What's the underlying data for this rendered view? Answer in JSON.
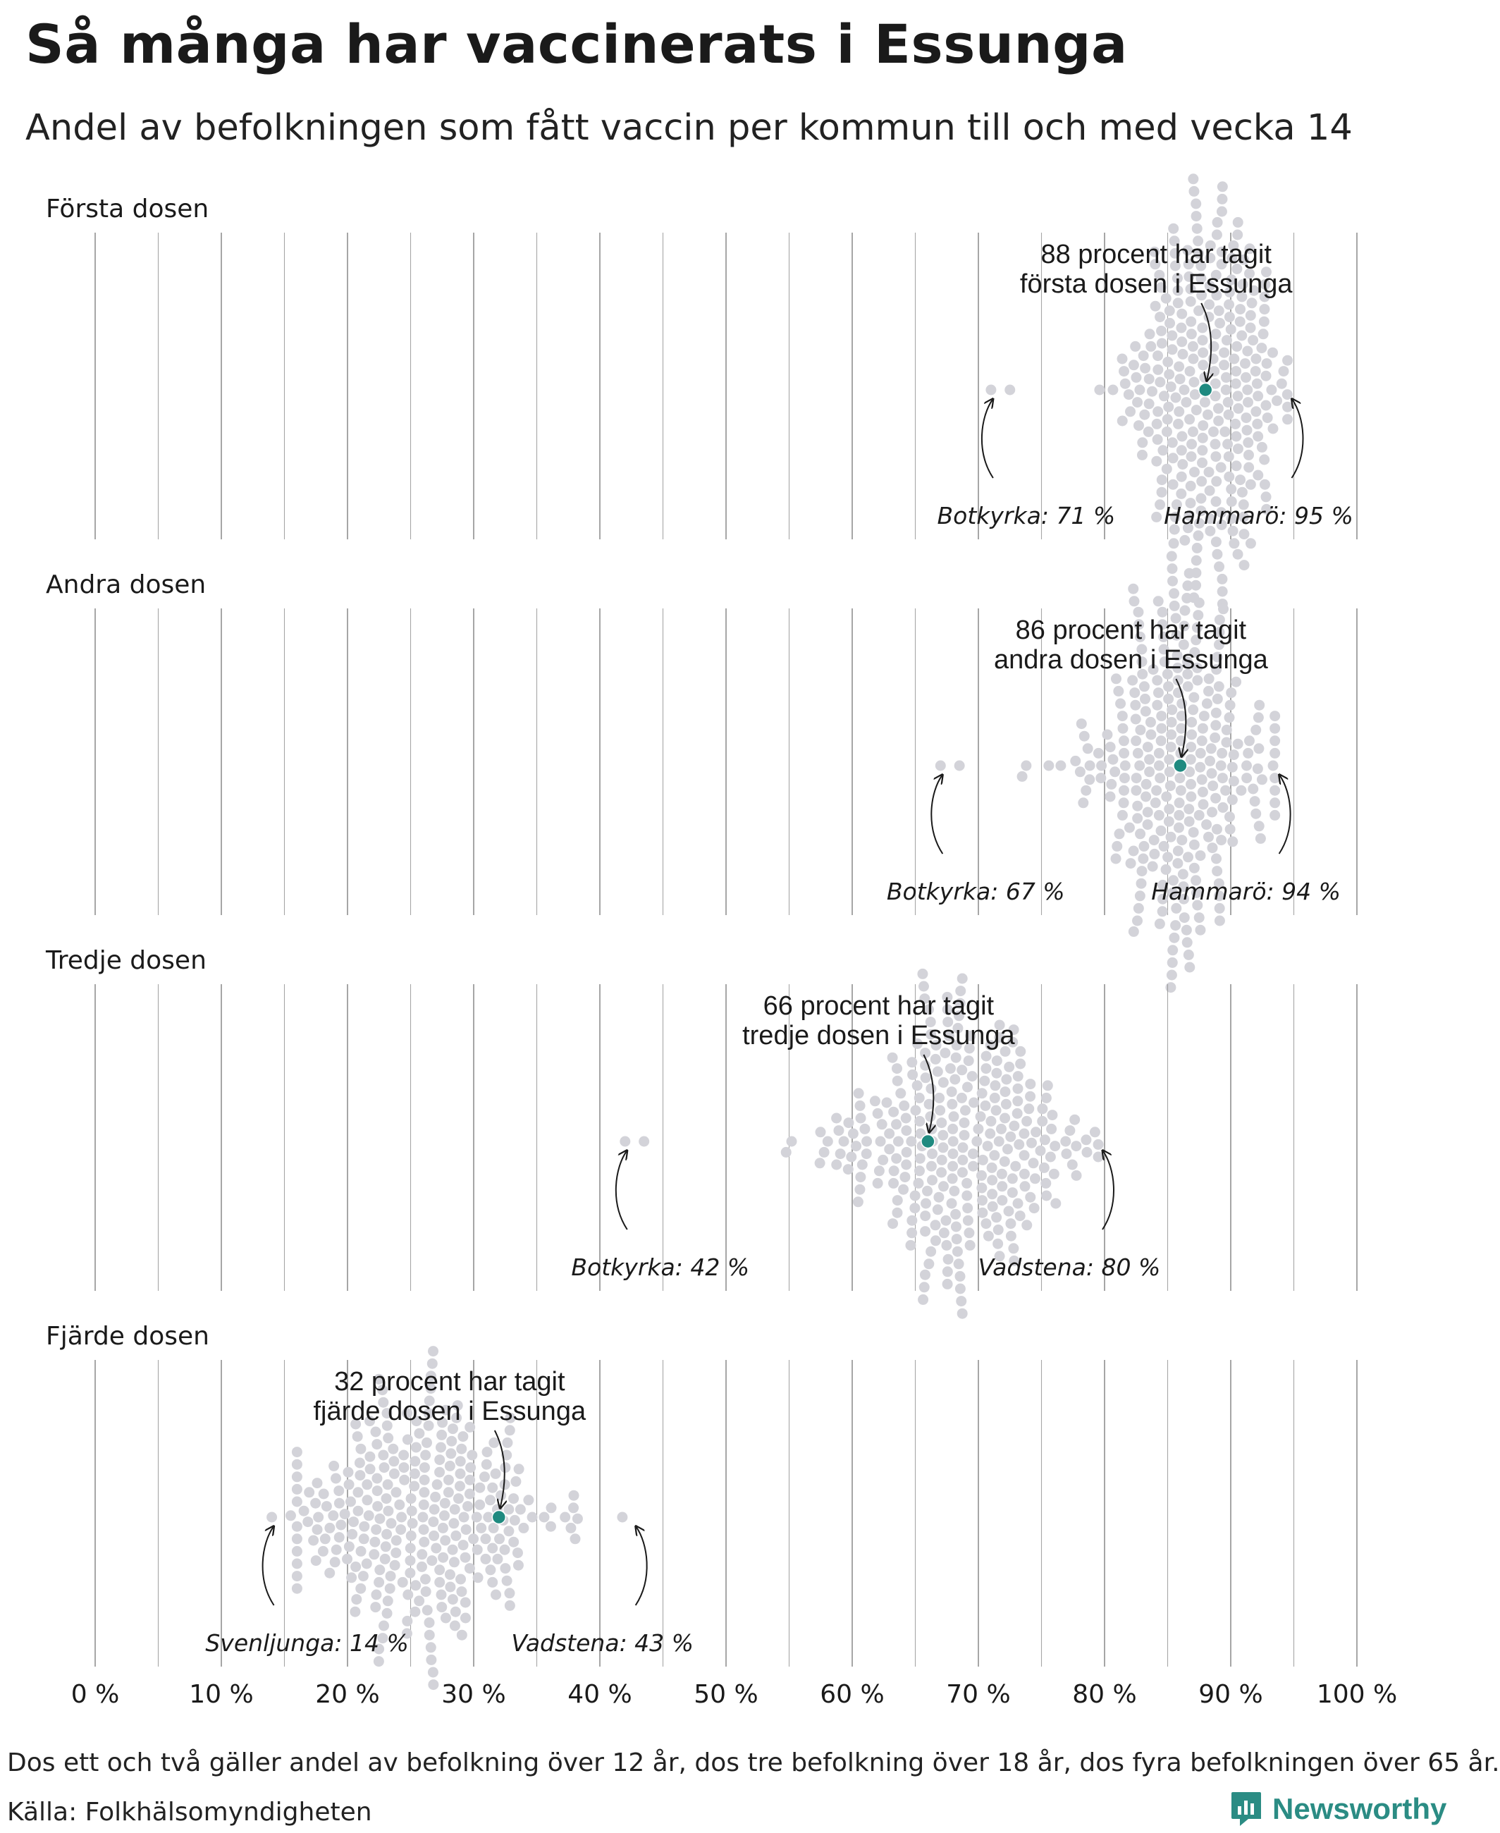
{
  "title": "Så många har vaccinerats i Essunga",
  "subtitle": "Andel av befolkningen som fått vaccin per kommun till och med vecka 14",
  "footer": {
    "note": "Dos ett och två gäller andel av befolkning över 12 år, dos tre befolkning över 18 år, dos fyra befolkningen över 65 år.",
    "source": "Källa: Folkhälsomyndigheten"
  },
  "brand": {
    "name": "Newsworthy",
    "icon": "newsworthy-logo-icon"
  },
  "colors": {
    "dots": "#d3d3d9",
    "highlight": "#1f8a80",
    "gridline": "#909090",
    "text": "#1a1a1a"
  },
  "chart_data": {
    "type": "scatter",
    "subtype": "beeswarm",
    "xlim": [
      0,
      100
    ],
    "x_ticks": [
      0,
      10,
      20,
      30,
      40,
      50,
      60,
      70,
      80,
      90,
      100
    ],
    "x_tick_labels": [
      "0 %",
      "10 %",
      "20 %",
      "30 %",
      "40 %",
      "50 %",
      "60 %",
      "70 %",
      "80 %",
      "90 %",
      "100 %"
    ],
    "minor_gridlines_every": 5,
    "panels": [
      {
        "name": "Första dosen",
        "distribution": {
          "min": 71,
          "max": 95,
          "center": 88,
          "spread": 3.2,
          "count": 290
        },
        "highlight": {
          "municipality": "Essunga",
          "value": 88,
          "label_line1": "88 procent har tagit",
          "label_line2": "första dosen i Essunga"
        },
        "min_label": {
          "municipality": "Botkyrka",
          "value": 71,
          "text": "Botkyrka: 71 %"
        },
        "max_label": {
          "municipality": "Hammarö",
          "value": 95,
          "text": "Hammarö: 95 %"
        }
      },
      {
        "name": "Andra dosen",
        "distribution": {
          "min": 67,
          "max": 94,
          "center": 86,
          "spread": 3.6,
          "count": 290
        },
        "highlight": {
          "municipality": "Essunga",
          "value": 86,
          "label_line1": "86 procent har tagit",
          "label_line2": "andra dosen i Essunga"
        },
        "min_label": {
          "municipality": "Botkyrka",
          "value": 67,
          "text": "Botkyrka: 67 %"
        },
        "max_label": {
          "municipality": "Hammarö",
          "value": 94,
          "text": "Hammarö: 94 %"
        }
      },
      {
        "name": "Tredje dosen",
        "distribution": {
          "min": 42,
          "max": 80,
          "center": 68,
          "spread": 5.0,
          "count": 290
        },
        "highlight": {
          "municipality": "Essunga",
          "value": 66,
          "label_line1": "66 procent har tagit",
          "label_line2": "tredje dosen i Essunga"
        },
        "min_label": {
          "municipality": "Botkyrka",
          "value": 42,
          "text": "Botkyrka: 42 %"
        },
        "max_label": {
          "municipality": "Vadstena",
          "value": 80,
          "text": "Vadstena: 80 %"
        }
      },
      {
        "name": "Fjärde dosen",
        "distribution": {
          "min": 14,
          "max": 43,
          "center": 26,
          "spread": 5.0,
          "count": 290
        },
        "highlight": {
          "municipality": "Essunga",
          "value": 32,
          "label_line1": "32 procent har tagit",
          "label_line2": "fjärde dosen i Essunga"
        },
        "min_label": {
          "municipality": "Svenljunga",
          "value": 14,
          "text": "Svenljunga: 14 %"
        },
        "max_label": {
          "municipality": "Vadstena",
          "value": 43,
          "text": "Vadstena: 43 %"
        }
      }
    ]
  }
}
